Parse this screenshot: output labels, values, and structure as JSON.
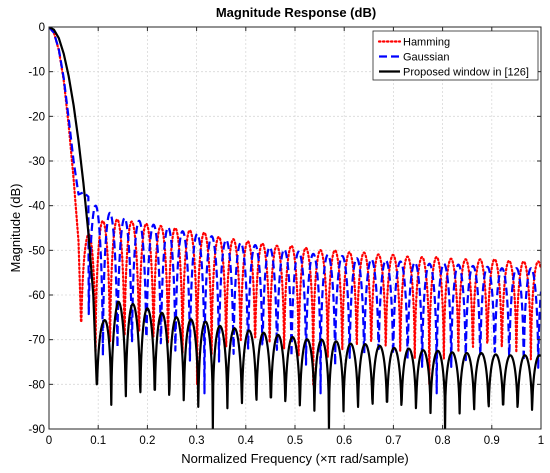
{
  "chart_data": {
    "type": "line",
    "title": "Magnitude Response (dB)",
    "xlabel": "Normalized Frequency (×π rad/sample)",
    "ylabel": "Magnitude (dB)",
    "xlim": [
      0,
      1
    ],
    "ylim": [
      -90,
      0
    ],
    "xticks": [
      0,
      0.1,
      0.2,
      0.3,
      0.4,
      0.5,
      0.6,
      0.7,
      0.8,
      0.9,
      1
    ],
    "xtick_labels": [
      "0",
      "0.1",
      "0.2",
      "0.3",
      "0.4",
      "0.5",
      "0.6",
      "0.7",
      "0.8",
      "0.9",
      "1"
    ],
    "yticks": [
      0,
      -10,
      -20,
      -30,
      -40,
      -50,
      -60,
      -70,
      -80,
      -90
    ],
    "ytick_labels": [
      "0",
      "-10",
      "-20",
      "-30",
      "-40",
      "-50",
      "-60",
      "-70",
      "-80",
      "-90"
    ],
    "grid": true,
    "legend_position": "top-right",
    "series": [
      {
        "name": "Hamming",
        "color": "#ff0000",
        "style": "dotted",
        "mainlobe_x": [
          0,
          0.01,
          0.02,
          0.03,
          0.04,
          0.05,
          0.06,
          0.065
        ],
        "mainlobe_y": [
          0,
          -1.3,
          -5.2,
          -12,
          -22,
          -34,
          -48,
          -66
        ],
        "lobe_start": 0.065,
        "lobe_period": 0.0295,
        "lobe_peak_x": [
          0.075,
          0.105,
          0.135,
          0.165,
          0.195,
          0.225,
          0.255,
          0.285,
          0.315,
          0.345,
          0.375,
          0.405,
          0.435,
          0.465,
          0.495,
          0.525,
          0.555,
          0.585,
          0.615,
          0.645,
          0.675,
          0.705,
          0.735,
          0.765,
          0.795,
          0.825,
          0.855,
          0.885,
          0.915,
          0.945,
          0.975
        ],
        "lobe_peak_y": [
          -47,
          -43.5,
          -43,
          -43.5,
          -44,
          -44.5,
          -45,
          -45.5,
          -46,
          -47,
          -47.5,
          -48,
          -48.5,
          -49,
          -49,
          -49.5,
          -50,
          -50,
          -50.5,
          -50.5,
          -51,
          -51,
          -51.5,
          -51.5,
          -51.5,
          -52,
          -52,
          -52,
          -52,
          -52.5,
          -52.5
        ],
        "lobe_null_y": -80
      },
      {
        "name": "Gaussian",
        "color": "#0000ff",
        "style": "dashed",
        "mainlobe_x": [
          0,
          0.01,
          0.02,
          0.03,
          0.04,
          0.05,
          0.06,
          0.07,
          0.08
        ],
        "mainlobe_y": [
          0,
          -1.3,
          -5,
          -11.5,
          -20.5,
          -30,
          -37.5,
          -37,
          -38
        ],
        "lobe_start": 0.08,
        "lobe_period": 0.0295,
        "lobe_peak_x": [
          0.1,
          0.13,
          0.16,
          0.19,
          0.22,
          0.25,
          0.28,
          0.31,
          0.34,
          0.37,
          0.4,
          0.43,
          0.46,
          0.49,
          0.52,
          0.55,
          0.58,
          0.61,
          0.64,
          0.67,
          0.7,
          0.73,
          0.76,
          0.79,
          0.82,
          0.85,
          0.88,
          0.91,
          0.94,
          0.97
        ],
        "lobe_peak_y": [
          -40,
          -42,
          -43,
          -43.5,
          -44.5,
          -45,
          -46,
          -46.5,
          -47,
          -48,
          -48.5,
          -49,
          -49.5,
          -50,
          -50.5,
          -51,
          -51,
          -51.5,
          -52,
          -52,
          -52.5,
          -52.5,
          -53,
          -53,
          -53,
          -53.5,
          -53.5,
          -54,
          -54,
          -54
        ],
        "lobe_null_y": -82
      },
      {
        "name": "Proposed window in [126]",
        "color": "#000000",
        "style": "solid",
        "mainlobe_x": [
          0,
          0.01,
          0.02,
          0.03,
          0.04,
          0.05,
          0.06,
          0.07,
          0.08,
          0.09,
          0.097
        ],
        "mainlobe_y": [
          0,
          -0.6,
          -2.5,
          -6,
          -11,
          -17.5,
          -25.5,
          -35,
          -46,
          -60,
          -80
        ],
        "lobe_start": 0.097,
        "lobe_period": 0.0295,
        "lobe_peak_x": [
          0.11,
          0.14,
          0.17,
          0.2,
          0.23,
          0.26,
          0.29,
          0.32,
          0.35,
          0.38,
          0.41,
          0.44,
          0.47,
          0.5,
          0.53,
          0.56,
          0.59,
          0.62,
          0.65,
          0.68,
          0.71,
          0.74,
          0.77,
          0.8,
          0.83,
          0.86,
          0.89,
          0.92,
          0.95,
          0.98
        ],
        "lobe_peak_y": [
          -66,
          -61.5,
          -62,
          -63,
          -64,
          -65,
          -65.5,
          -66,
          -67,
          -67.5,
          -68,
          -68.5,
          -69,
          -69.5,
          -70,
          -70,
          -70.5,
          -71,
          -71,
          -71.5,
          -72,
          -72,
          -72.5,
          -72.5,
          -73,
          -73,
          -73,
          -73.5,
          -73.5,
          -73.5
        ],
        "lobe_null_y": -90
      }
    ]
  }
}
